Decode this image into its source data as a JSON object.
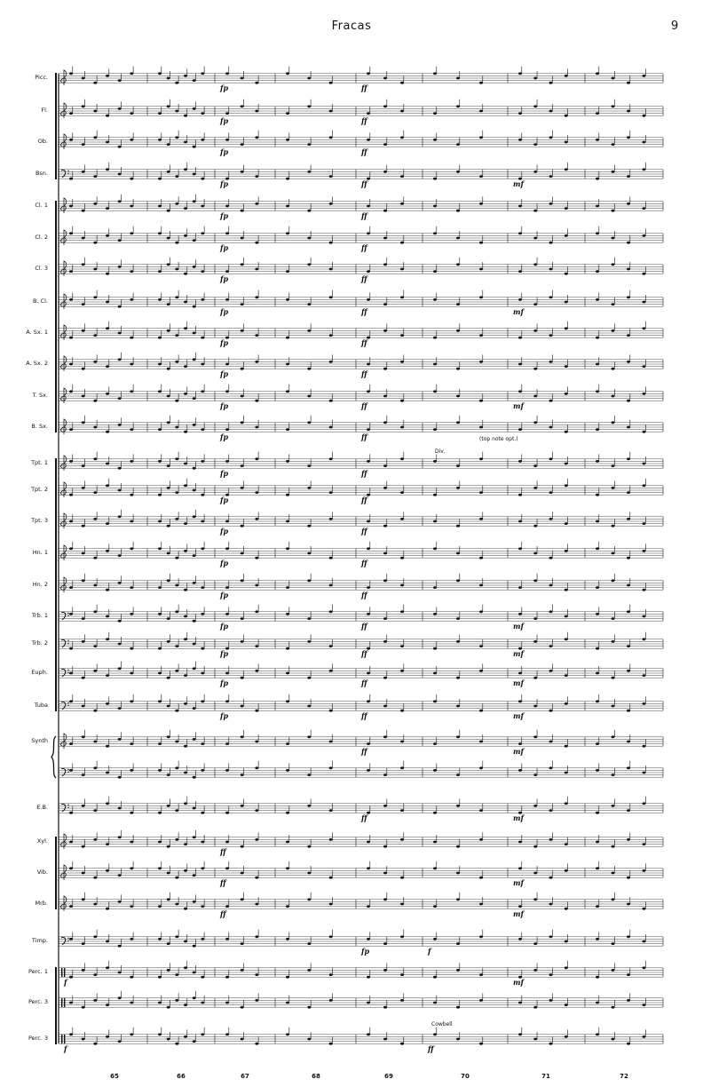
{
  "header": {
    "title": "Fracas",
    "page_number": "9"
  },
  "measure_numbers": [
    "65",
    "66",
    "67",
    "68",
    "69",
    "70",
    "71",
    "72"
  ],
  "staves": [
    {
      "label": "Picc.",
      "clef": "treble",
      "dyn": [
        {
          "m": 67,
          "t": "fp"
        },
        {
          "m": 69,
          "t": "ff"
        }
      ]
    },
    {
      "label": "Fl.",
      "clef": "treble",
      "dyn": [
        {
          "m": 67,
          "t": "fp"
        },
        {
          "m": 69,
          "t": "ff"
        }
      ]
    },
    {
      "label": "Ob.",
      "clef": "treble",
      "dyn": [
        {
          "m": 67,
          "t": "fp"
        },
        {
          "m": 69,
          "t": "ff"
        }
      ]
    },
    {
      "label": "Bsn.",
      "clef": "bass",
      "dyn": [
        {
          "m": 67,
          "t": "fp"
        },
        {
          "m": 69,
          "t": "ff"
        },
        {
          "m": 71,
          "t": "mf"
        }
      ]
    },
    {
      "label": "Cl. 1",
      "clef": "treble",
      "dyn": [
        {
          "m": 67,
          "t": "fp"
        },
        {
          "m": 69,
          "t": "ff"
        }
      ]
    },
    {
      "label": "Cl. 2",
      "clef": "treble",
      "dyn": [
        {
          "m": 67,
          "t": "fp"
        },
        {
          "m": 69,
          "t": "ff"
        }
      ]
    },
    {
      "label": "Cl. 3",
      "clef": "treble",
      "dyn": [
        {
          "m": 67,
          "t": "fp"
        },
        {
          "m": 69,
          "t": "ff"
        }
      ]
    },
    {
      "label": "B. Cl.",
      "clef": "treble",
      "dyn": [
        {
          "m": 67,
          "t": "fp"
        },
        {
          "m": 69,
          "t": "ff"
        },
        {
          "m": 71,
          "t": "mf"
        }
      ]
    },
    {
      "label": "A. Sx. 1",
      "clef": "treble",
      "dyn": [
        {
          "m": 67,
          "t": "fp"
        },
        {
          "m": 69,
          "t": "ff"
        }
      ]
    },
    {
      "label": "A. Sx. 2",
      "clef": "treble",
      "dyn": [
        {
          "m": 67,
          "t": "fp"
        },
        {
          "m": 69,
          "t": "ff"
        }
      ]
    },
    {
      "label": "T. Sx.",
      "clef": "treble",
      "dyn": [
        {
          "m": 67,
          "t": "fp"
        },
        {
          "m": 69,
          "t": "ff"
        },
        {
          "m": 71,
          "t": "mf"
        }
      ]
    },
    {
      "label": "B. Sx.",
      "clef": "treble",
      "dyn": [
        {
          "m": 67,
          "t": "fp"
        },
        {
          "m": 69,
          "t": "ff"
        }
      ]
    },
    {
      "label": "Tpt. 1",
      "clef": "treble",
      "dyn": [
        {
          "m": 67,
          "t": "fp"
        },
        {
          "m": 69,
          "t": "ff"
        }
      ]
    },
    {
      "label": "Tpt. 2",
      "clef": "treble",
      "dyn": [
        {
          "m": 67,
          "t": "fp"
        },
        {
          "m": 69,
          "t": "ff"
        }
      ]
    },
    {
      "label": "Tpt. 3",
      "clef": "treble",
      "dyn": [
        {
          "m": 67,
          "t": "fp"
        },
        {
          "m": 69,
          "t": "ff"
        }
      ]
    },
    {
      "label": "Hn. 1",
      "clef": "treble",
      "dyn": [
        {
          "m": 67,
          "t": "fp"
        },
        {
          "m": 69,
          "t": "ff"
        }
      ]
    },
    {
      "label": "Hn. 2",
      "clef": "treble",
      "dyn": [
        {
          "m": 67,
          "t": "fp"
        },
        {
          "m": 69,
          "t": "ff"
        }
      ]
    },
    {
      "label": "Trb. 1",
      "clef": "bass",
      "dyn": [
        {
          "m": 67,
          "t": "fp"
        },
        {
          "m": 69,
          "t": "ff"
        },
        {
          "m": 71,
          "t": "mf"
        }
      ]
    },
    {
      "label": "Trb. 2",
      "clef": "bass",
      "dyn": [
        {
          "m": 67,
          "t": "fp"
        },
        {
          "m": 69,
          "t": "ff"
        },
        {
          "m": 71,
          "t": "mf"
        }
      ]
    },
    {
      "label": "Euph.",
      "clef": "bass",
      "dyn": [
        {
          "m": 67,
          "t": "fp"
        },
        {
          "m": 69,
          "t": "ff"
        },
        {
          "m": 71,
          "t": "mf"
        }
      ]
    },
    {
      "label": "Tuba",
      "clef": "bass",
      "dyn": [
        {
          "m": 67,
          "t": "fp"
        },
        {
          "m": 69,
          "t": "ff"
        },
        {
          "m": 71,
          "t": "mf"
        }
      ]
    },
    {
      "label": "Synth",
      "clef": "treble",
      "dyn": [
        {
          "m": 69,
          "t": "ff"
        },
        {
          "m": 71,
          "t": "mf"
        }
      ]
    },
    {
      "label": "",
      "clef": "bass",
      "dyn": []
    },
    {
      "label": "E.B.",
      "clef": "bass",
      "dyn": [
        {
          "m": 69,
          "t": "ff"
        },
        {
          "m": 71,
          "t": "mf"
        }
      ]
    },
    {
      "label": "Xyl.",
      "clef": "treble",
      "dyn": [
        {
          "m": 67,
          "t": "ff"
        }
      ]
    },
    {
      "label": "Vib.",
      "clef": "treble",
      "dyn": [
        {
          "m": 67,
          "t": "ff"
        },
        {
          "m": 71,
          "t": "mf"
        }
      ]
    },
    {
      "label": "Mrb.",
      "clef": "treble",
      "dyn": [
        {
          "m": 67,
          "t": "ff"
        },
        {
          "m": 71,
          "t": "mf"
        }
      ]
    },
    {
      "label": "Timp.",
      "clef": "bass",
      "dyn": [
        {
          "m": 69,
          "t": "fp"
        },
        {
          "m": 70,
          "t": "f"
        }
      ]
    },
    {
      "label": "Perc. 1",
      "clef": "perc",
      "dyn": [
        {
          "m": 65,
          "t": "f"
        },
        {
          "m": 71,
          "t": "mf"
        }
      ]
    },
    {
      "label": "Perc. 3",
      "clef": "perc",
      "dyn": []
    },
    {
      "label": "Perc. 3",
      "clef": "perc",
      "dyn": [
        {
          "m": 65,
          "t": "f"
        },
        {
          "m": 70,
          "t": "ff"
        }
      ]
    }
  ],
  "annotations": {
    "top_note": "(top note opt.)",
    "div": "Div.",
    "cowbell": "Cowbell"
  }
}
